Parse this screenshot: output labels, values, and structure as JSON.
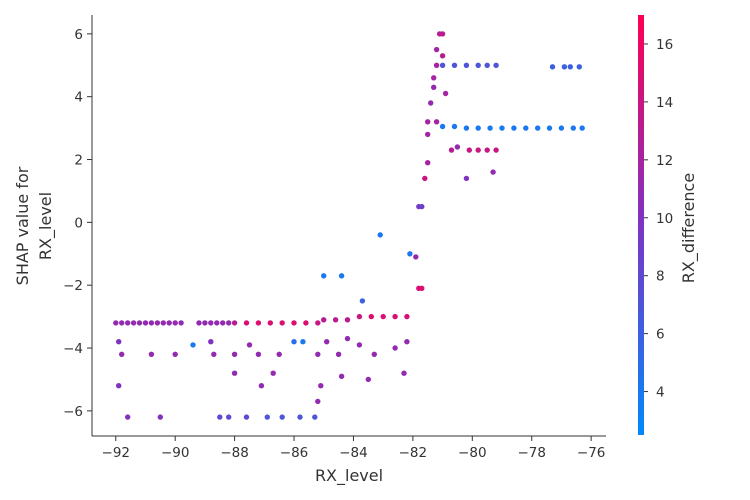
{
  "chart_data": {
    "type": "scatter",
    "title": "",
    "xlabel": "RX_level",
    "ylabel_lines": [
      "SHAP value for",
      "RX_level"
    ],
    "xlim": [
      -92.8,
      -75.5
    ],
    "ylim": [
      -6.8,
      6.6
    ],
    "xticks": [
      -92,
      -90,
      -88,
      -86,
      -84,
      -82,
      -80,
      -78,
      -76
    ],
    "xtick_labels": [
      "−92",
      "−90",
      "−88",
      "−86",
      "−84",
      "−82",
      "−80",
      "−78",
      "−76"
    ],
    "yticks": [
      -6,
      -4,
      -2,
      0,
      2,
      4,
      6
    ],
    "ytick_labels": [
      "−6",
      "−4",
      "−2",
      "0",
      "2",
      "4",
      "6"
    ],
    "grid": false,
    "colorbar": {
      "label": "RX_difference",
      "range": [
        2.5,
        17
      ],
      "ticks": [
        4,
        6,
        8,
        10,
        12,
        14,
        16
      ],
      "tick_labels": [
        "4",
        "6",
        "8",
        "10",
        "12",
        "14",
        "16"
      ],
      "colors": [
        "#008afb",
        "#7d34c4",
        "#ff0052"
      ]
    },
    "points": [
      {
        "x": -92,
        "y": -3.2,
        "c": 11
      },
      {
        "x": -91.8,
        "y": -3.2,
        "c": 11
      },
      {
        "x": -91.6,
        "y": -3.2,
        "c": 11
      },
      {
        "x": -91.4,
        "y": -3.2,
        "c": 11
      },
      {
        "x": -91.2,
        "y": -3.2,
        "c": 11
      },
      {
        "x": -91,
        "y": -3.2,
        "c": 11
      },
      {
        "x": -90.8,
        "y": -3.2,
        "c": 11
      },
      {
        "x": -90.6,
        "y": -3.2,
        "c": 11
      },
      {
        "x": -90.4,
        "y": -3.2,
        "c": 11
      },
      {
        "x": -90.2,
        "y": -3.2,
        "c": 11
      },
      {
        "x": -90,
        "y": -3.2,
        "c": 11
      },
      {
        "x": -89.8,
        "y": -3.2,
        "c": 11
      },
      {
        "x": -89.2,
        "y": -3.2,
        "c": 11
      },
      {
        "x": -89,
        "y": -3.2,
        "c": 11
      },
      {
        "x": -88.8,
        "y": -3.2,
        "c": 11
      },
      {
        "x": -88.6,
        "y": -3.2,
        "c": 11
      },
      {
        "x": -88.4,
        "y": -3.2,
        "c": 11
      },
      {
        "x": -88.2,
        "y": -3.2,
        "c": 11
      },
      {
        "x": -88,
        "y": -3.2,
        "c": 13
      },
      {
        "x": -87.6,
        "y": -3.2,
        "c": 15
      },
      {
        "x": -87.2,
        "y": -3.2,
        "c": 15
      },
      {
        "x": -86.8,
        "y": -3.2,
        "c": 15
      },
      {
        "x": -86.4,
        "y": -3.2,
        "c": 15
      },
      {
        "x": -86,
        "y": -3.2,
        "c": 15
      },
      {
        "x": -85.6,
        "y": -3.2,
        "c": 15
      },
      {
        "x": -85.2,
        "y": -3.2,
        "c": 14
      },
      {
        "x": -85,
        "y": -3.1,
        "c": 13
      },
      {
        "x": -84.6,
        "y": -3.1,
        "c": 13
      },
      {
        "x": -84.2,
        "y": -3.1,
        "c": 13
      },
      {
        "x": -83.8,
        "y": -3,
        "c": 14
      },
      {
        "x": -83.4,
        "y": -3,
        "c": 15
      },
      {
        "x": -83,
        "y": -3,
        "c": 15
      },
      {
        "x": -82.6,
        "y": -3,
        "c": 15
      },
      {
        "x": -82.2,
        "y": -3,
        "c": 15
      },
      {
        "x": -91.9,
        "y": -3.8,
        "c": 10
      },
      {
        "x": -91.8,
        "y": -4.2,
        "c": 11
      },
      {
        "x": -90.8,
        "y": -4.2,
        "c": 11
      },
      {
        "x": -90,
        "y": -4.2,
        "c": 11
      },
      {
        "x": -89.4,
        "y": -3.9,
        "c": 4
      },
      {
        "x": -88.8,
        "y": -3.8,
        "c": 10
      },
      {
        "x": -88.7,
        "y": -4.2,
        "c": 11
      },
      {
        "x": -88,
        "y": -4.2,
        "c": 11
      },
      {
        "x": -87.5,
        "y": -3.9,
        "c": 11
      },
      {
        "x": -87.2,
        "y": -4.2,
        "c": 11
      },
      {
        "x": -86.5,
        "y": -4.2,
        "c": 11
      },
      {
        "x": -86,
        "y": -3.8,
        "c": 5
      },
      {
        "x": -85.7,
        "y": -3.8,
        "c": 4
      },
      {
        "x": -85.2,
        "y": -4.2,
        "c": 11
      },
      {
        "x": -84.9,
        "y": -3.8,
        "c": 11
      },
      {
        "x": -84.5,
        "y": -4.2,
        "c": 11
      },
      {
        "x": -84.2,
        "y": -3.7,
        "c": 11
      },
      {
        "x": -83.8,
        "y": -3.9,
        "c": 11
      },
      {
        "x": -83.3,
        "y": -4.2,
        "c": 11
      },
      {
        "x": -82.6,
        "y": -4,
        "c": 11
      },
      {
        "x": -82.2,
        "y": -3.8,
        "c": 11
      },
      {
        "x": -91.9,
        "y": -5.2,
        "c": 10
      },
      {
        "x": -91.6,
        "y": -6.2,
        "c": 10
      },
      {
        "x": -90.5,
        "y": -6.2,
        "c": 10
      },
      {
        "x": -88.5,
        "y": -6.2,
        "c": 8
      },
      {
        "x": -88.2,
        "y": -6.2,
        "c": 8
      },
      {
        "x": -87.6,
        "y": -6.2,
        "c": 8
      },
      {
        "x": -86.9,
        "y": -6.2,
        "c": 7
      },
      {
        "x": -86.4,
        "y": -6.2,
        "c": 7
      },
      {
        "x": -85.8,
        "y": -6.2,
        "c": 7
      },
      {
        "x": -85.3,
        "y": -6.2,
        "c": 7
      },
      {
        "x": -88,
        "y": -4.8,
        "c": 11
      },
      {
        "x": -87.1,
        "y": -5.2,
        "c": 11
      },
      {
        "x": -86.7,
        "y": -4.8,
        "c": 11
      },
      {
        "x": -85.1,
        "y": -5.2,
        "c": 11
      },
      {
        "x": -85.2,
        "y": -5.7,
        "c": 11
      },
      {
        "x": -84.4,
        "y": -4.9,
        "c": 11
      },
      {
        "x": -83.5,
        "y": -5,
        "c": 11
      },
      {
        "x": -82.3,
        "y": -4.8,
        "c": 11
      },
      {
        "x": -85,
        "y": -1.7,
        "c": 4
      },
      {
        "x": -84.4,
        "y": -1.7,
        "c": 4
      },
      {
        "x": -83.7,
        "y": -2.5,
        "c": 6
      },
      {
        "x": -83.1,
        "y": -0.4,
        "c": 4
      },
      {
        "x": -82.1,
        "y": -1,
        "c": 4
      },
      {
        "x": -81.9,
        "y": -1.1,
        "c": 11
      },
      {
        "x": -81.8,
        "y": -2.1,
        "c": 15
      },
      {
        "x": -81.7,
        "y": -2.1,
        "c": 15
      },
      {
        "x": -81.8,
        "y": 0.5,
        "c": 9
      },
      {
        "x": -81.7,
        "y": 0.5,
        "c": 9
      },
      {
        "x": -81.6,
        "y": 1.4,
        "c": 14
      },
      {
        "x": -81.5,
        "y": 1.9,
        "c": 12
      },
      {
        "x": -81.5,
        "y": 2.8,
        "c": 12
      },
      {
        "x": -81.5,
        "y": 3.2,
        "c": 12
      },
      {
        "x": -81.2,
        "y": 3.2,
        "c": 12
      },
      {
        "x": -81.4,
        "y": 3.8,
        "c": 11
      },
      {
        "x": -81.3,
        "y": 4.3,
        "c": 11
      },
      {
        "x": -81.3,
        "y": 4.6,
        "c": 12
      },
      {
        "x": -81.2,
        "y": 5,
        "c": 12
      },
      {
        "x": -81.2,
        "y": 5.5,
        "c": 12
      },
      {
        "x": -81.1,
        "y": 6,
        "c": 13
      },
      {
        "x": -81,
        "y": 6,
        "c": 13
      },
      {
        "x": -81,
        "y": 5.3,
        "c": 13
      },
      {
        "x": -80.9,
        "y": 4.1,
        "c": 12
      },
      {
        "x": -80.7,
        "y": 2.3,
        "c": 13
      },
      {
        "x": -80.5,
        "y": 2.4,
        "c": 11
      },
      {
        "x": -80.2,
        "y": 1.4,
        "c": 10
      },
      {
        "x": -81,
        "y": 5,
        "c": 7
      },
      {
        "x": -80.6,
        "y": 5,
        "c": 7
      },
      {
        "x": -80.2,
        "y": 5,
        "c": 7
      },
      {
        "x": -79.8,
        "y": 5,
        "c": 7
      },
      {
        "x": -79.5,
        "y": 5,
        "c": 7
      },
      {
        "x": -79.2,
        "y": 5,
        "c": 7
      },
      {
        "x": -77.3,
        "y": 4.95,
        "c": 6
      },
      {
        "x": -76.9,
        "y": 4.95,
        "c": 6
      },
      {
        "x": -76.7,
        "y": 4.95,
        "c": 6
      },
      {
        "x": -76.4,
        "y": 4.95,
        "c": 6
      },
      {
        "x": -81,
        "y": 3.05,
        "c": 4
      },
      {
        "x": -80.6,
        "y": 3.05,
        "c": 4
      },
      {
        "x": -80.2,
        "y": 3,
        "c": 4
      },
      {
        "x": -79.8,
        "y": 3,
        "c": 4
      },
      {
        "x": -79.4,
        "y": 3,
        "c": 4
      },
      {
        "x": -79,
        "y": 3,
        "c": 4
      },
      {
        "x": -78.6,
        "y": 3,
        "c": 4
      },
      {
        "x": -78.2,
        "y": 3,
        "c": 4
      },
      {
        "x": -77.8,
        "y": 3,
        "c": 4
      },
      {
        "x": -77.4,
        "y": 3,
        "c": 4
      },
      {
        "x": -77,
        "y": 3,
        "c": 4
      },
      {
        "x": -76.6,
        "y": 3,
        "c": 4
      },
      {
        "x": -76.3,
        "y": 3,
        "c": 4
      },
      {
        "x": -80.1,
        "y": 2.3,
        "c": 14
      },
      {
        "x": -79.8,
        "y": 2.3,
        "c": 14
      },
      {
        "x": -79.5,
        "y": 2.3,
        "c": 14
      },
      {
        "x": -79.2,
        "y": 2.3,
        "c": 14
      },
      {
        "x": -79.3,
        "y": 1.6,
        "c": 11
      }
    ]
  }
}
